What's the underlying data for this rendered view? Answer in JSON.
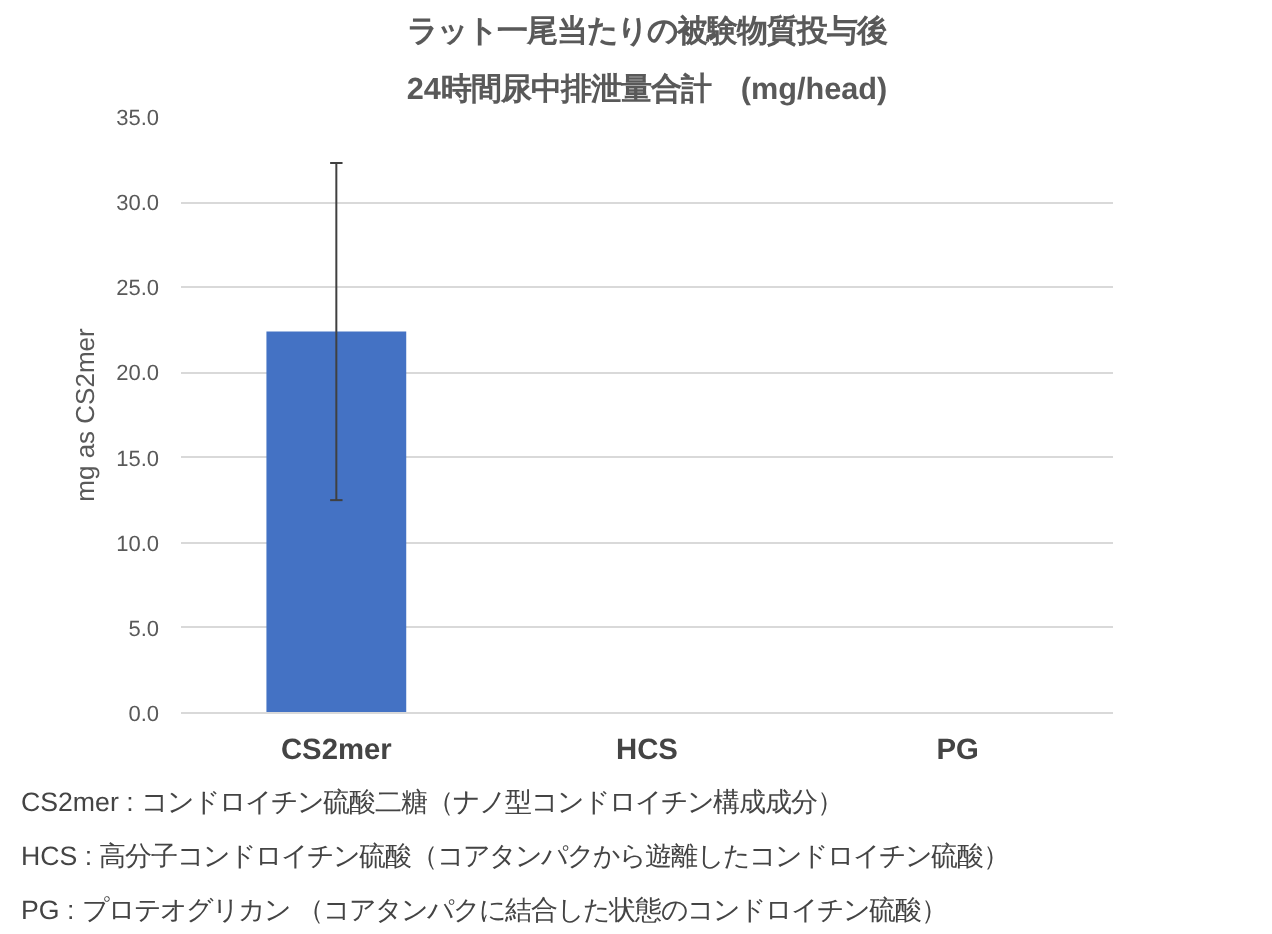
{
  "chart_data": {
    "type": "bar",
    "title": "ラット一尾当たりの被験物質投与後",
    "subtitle": "24時間尿中排泄量合計　(mg/head)",
    "ylabel": "mg as CS2mer",
    "categories": [
      "CS2mer",
      "HCS",
      "PG"
    ],
    "series": [
      {
        "color": "#4472c4",
        "values": [
          22.4,
          0,
          0
        ],
        "errors": [
          9.9,
          null,
          null
        ]
      }
    ],
    "ylim": [
      0,
      35
    ],
    "yticks": [
      {
        "value": 0,
        "label": "0.0"
      },
      {
        "value": 5,
        "label": "5.0"
      },
      {
        "value": 10,
        "label": "10.0"
      },
      {
        "value": 15,
        "label": "15.0"
      },
      {
        "value": 20,
        "label": "20.0"
      },
      {
        "value": 25,
        "label": "25.0"
      },
      {
        "value": 30,
        "label": "30.0"
      },
      {
        "value": 35,
        "label": "35.0"
      }
    ],
    "grid": "y",
    "annotations": [
      "CS2mer : コンドロイチン硫酸二糖（ナノ型コンドロイチン構成成分）",
      "HCS : 高分子コンドロイチン硫酸（コアタンパクから遊離したコンドロイチン硫酸）",
      "PG : プロテオグリカン （コアタンパクに結合した状態のコンドロイチン硫酸）"
    ]
  }
}
